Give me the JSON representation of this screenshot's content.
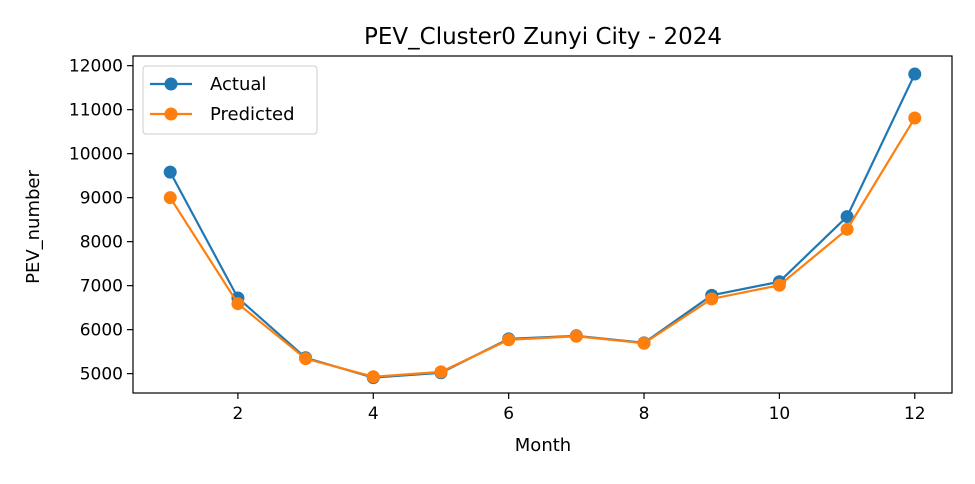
{
  "chart_data": {
    "type": "line",
    "title": "PEV_Cluster0 Zunyi City  - 2024",
    "xlabel": "Month",
    "ylabel": "PEV_number",
    "x": [
      1,
      2,
      3,
      4,
      5,
      6,
      7,
      8,
      9,
      10,
      11,
      12
    ],
    "xlim": [
      0.45,
      12.55
    ],
    "ylim": [
      4560,
      12220
    ],
    "xticks": [
      2,
      4,
      6,
      8,
      10,
      12
    ],
    "yticks": [
      5000,
      6000,
      7000,
      8000,
      9000,
      10000,
      11000,
      12000
    ],
    "grid": false,
    "legend": "top-left",
    "series": [
      {
        "name": "Actual",
        "color": "#1f77b4",
        "marker": "circle",
        "values": [
          9580,
          6720,
          5360,
          4910,
          5020,
          5790,
          5860,
          5700,
          6780,
          7090,
          8570,
          11810
        ]
      },
      {
        "name": "Predicted",
        "color": "#ff7f0e",
        "marker": "circle",
        "values": [
          9000,
          6590,
          5340,
          4930,
          5040,
          5770,
          5850,
          5690,
          6700,
          7010,
          8280,
          10810
        ]
      }
    ]
  }
}
